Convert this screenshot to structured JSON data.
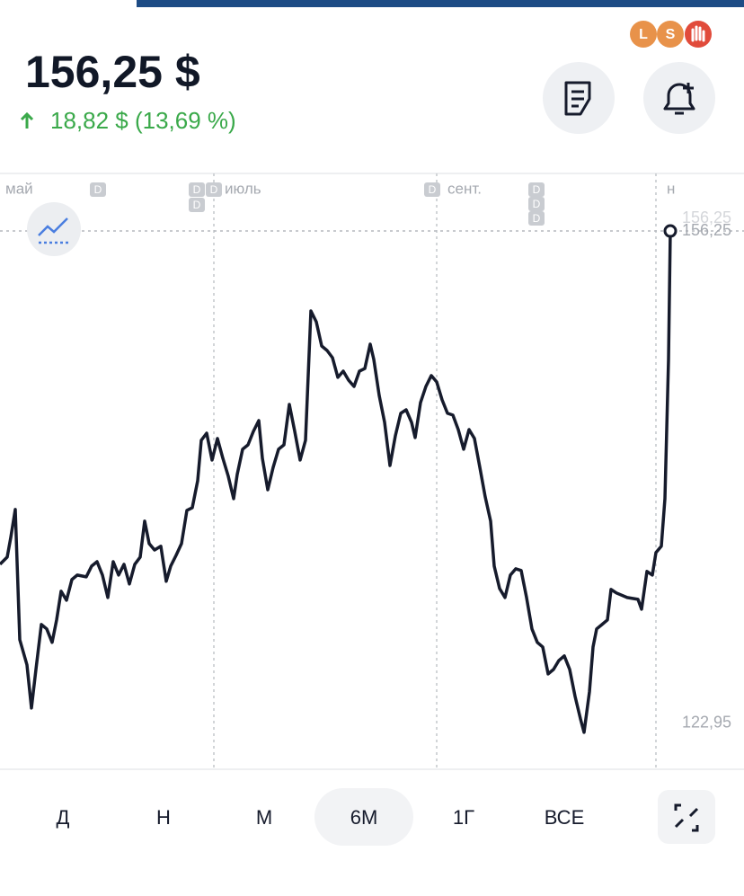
{
  "header": {
    "price": "156,25 $",
    "change": "18,82 $ (13,69 %)",
    "avatars": [
      "L",
      "S"
    ]
  },
  "chart_data": {
    "type": "line",
    "x": [
      -59.5,
      -57.5,
      -56.5,
      -55.25,
      -54,
      -52,
      -50.75,
      -49.5,
      -48,
      -46.5,
      -45,
      -43.75,
      -42.5,
      -41,
      -39.5,
      -38,
      -35.5,
      -34,
      -32.5,
      -31,
      -29.5,
      -28,
      -26.5,
      -25,
      -23.5,
      -22,
      -20.5,
      -19.25,
      -18,
      -16.5,
      -14.75,
      -13.25,
      -12,
      -10.5,
      -9,
      -7.5,
      -6,
      -4.5,
      -3.5,
      -2,
      -0.5,
      1,
      2.5,
      4,
      5.5,
      6.5,
      8,
      9.5,
      11,
      12.5,
      13.5,
      15,
      16.5,
      18,
      19.5,
      21,
      22.5,
      24,
      25.5,
      27,
      28.5,
      30,
      31.5,
      33,
      34.5,
      36,
      37.5,
      39,
      40.5,
      42,
      43.5,
      44.5,
      46,
      47.5,
      49,
      50.5,
      52,
      53.5,
      55,
      56,
      57.5,
      59,
      60.5,
      62,
      63.5,
      65,
      66.5,
      68,
      69.5,
      71,
      72.5,
      74,
      75.5,
      77,
      78,
      79.5,
      81,
      82.5,
      84,
      85.5,
      87,
      88.5,
      90,
      91.5,
      93,
      94.5,
      96,
      97.5,
      99,
      100.5,
      102,
      103,
      104.5,
      105.5,
      106.5,
      108,
      109.5,
      110.5,
      112,
      115,
      118,
      119,
      120.5,
      122,
      123,
      124.5,
      125.5,
      126.5,
      127
    ],
    "series": [
      {
        "color": "#161b2c",
        "values": [
          133.71,
          134.2,
          135.53,
          137.42,
          128.61,
          126.91,
          123.99,
          126.6,
          129.64,
          129.34,
          128.43,
          129.95,
          131.89,
          131.28,
          132.68,
          132.98,
          132.86,
          133.59,
          133.89,
          132.98,
          131.46,
          133.89,
          132.98,
          133.71,
          132.38,
          133.71,
          134.2,
          136.63,
          135.11,
          134.68,
          134.93,
          132.56,
          133.59,
          134.32,
          135.11,
          137.36,
          137.54,
          139.36,
          142.1,
          142.58,
          140.76,
          142.22,
          140.88,
          139.67,
          138.15,
          139.79,
          141.49,
          141.79,
          142.7,
          143.43,
          140.88,
          138.75,
          140.27,
          141.49,
          141.79,
          144.52,
          142.7,
          140.76,
          142.1,
          150.84,
          150.11,
          148.47,
          148.17,
          147.68,
          146.35,
          146.77,
          146.16,
          145.74,
          146.77,
          146.95,
          148.6,
          147.56,
          145.13,
          143.31,
          140.39,
          142.4,
          143.92,
          144.16,
          143.31,
          142.28,
          144.65,
          145.74,
          146.47,
          146.04,
          144.83,
          143.92,
          143.8,
          142.82,
          141.49,
          142.82,
          142.22,
          140.27,
          138.27,
          136.63,
          133.59,
          132.07,
          131.46,
          132.98,
          133.41,
          133.29,
          131.46,
          129.34,
          128.43,
          128.12,
          126.3,
          126.6,
          127.21,
          127.52,
          126.6,
          124.78,
          123.26,
          122.35,
          125.09,
          128.12,
          129.34,
          129.64,
          129.95,
          132.01,
          131.77,
          131.46,
          131.34,
          130.67,
          133.23,
          132.98,
          134.5,
          134.93,
          138.15,
          147.56,
          156.25
        ]
      }
    ],
    "xlim": [
      -59.5,
      147.5
    ],
    "xticks": [
      {
        "value": -61,
        "label": "май"
      },
      {
        "value": 0,
        "label": "июль"
      },
      {
        "value": 62,
        "label": "сент."
      },
      {
        "value": 123,
        "label": "н"
      }
    ],
    "ylim": [
      119.85,
      160.14
    ],
    "yticks": [
      {
        "value": 156.25,
        "label": "156,25"
      },
      {
        "value": 122.95,
        "label": "122,95"
      }
    ],
    "annotation": "156,25",
    "event_badges": [
      "D",
      "D",
      "D",
      "D",
      "D",
      "D",
      "D",
      "D"
    ],
    "grid": true
  },
  "periods": [
    "Д",
    "Н",
    "М",
    "6М",
    "1Г",
    "ВСЕ"
  ],
  "selected_period": 3
}
